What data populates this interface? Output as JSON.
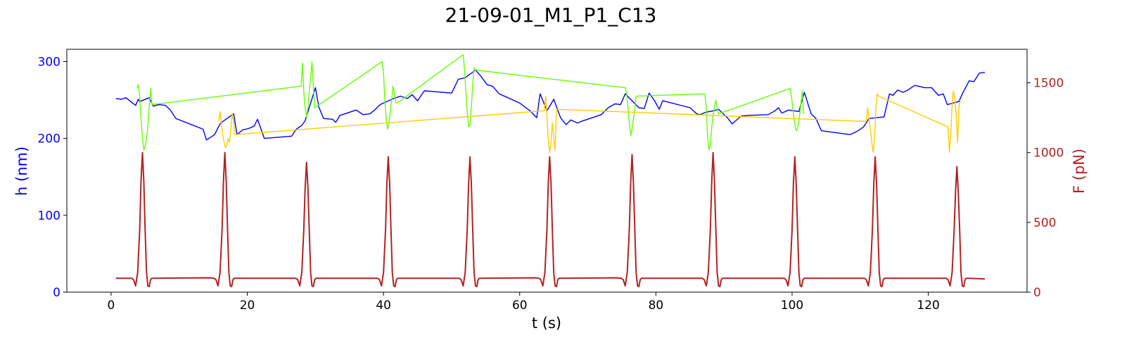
{
  "chart_data": {
    "type": "line",
    "title": "21-09-01_M1_P1_C13",
    "xlabel": "t (s)",
    "ylabel_left": "h (nm)",
    "ylabel_right": "F (pN)",
    "xlim": [
      -6.5,
      134.5
    ],
    "ylim_left": [
      0,
      316
    ],
    "ylim_right": [
      0,
      1740
    ],
    "xticks": [
      0,
      20,
      40,
      60,
      80,
      100,
      120
    ],
    "yticks_left": [
      0,
      100,
      200,
      300
    ],
    "yticks_right": [
      0,
      500,
      1000,
      1500
    ],
    "grid": false,
    "colors": {
      "height": "#0000ff",
      "compression_green": "#66ff00",
      "compression_yellow": "#ffcc00",
      "force": "#b22222",
      "left_axis": "#0000ff",
      "right_axis": "#b22222"
    },
    "series": [
      {
        "axis": "left",
        "color": "#0000ff",
        "x": [
          0.7,
          1.5,
          2.2,
          3.0,
          3.6,
          4.0,
          4.2,
          5.6,
          6.2,
          7.0,
          8.0,
          8.7,
          9.5,
          13.5,
          14.0,
          15.2,
          16.0,
          16.4,
          18.0,
          18.5,
          19.3,
          20.2,
          21.0,
          21.5,
          22.5,
          26.5,
          27.2,
          28.0,
          28.5,
          30.0,
          30.5,
          31.2,
          32.5,
          33.0,
          33.6,
          36.0,
          37.0,
          38.0,
          38.7,
          39.5,
          41.5,
          42.5,
          43.5,
          44.2,
          45.0,
          46.0,
          50.0,
          51.0,
          52.0,
          53.5,
          54.3,
          55.2,
          56.0,
          57.0,
          60.0,
          61.5,
          62.5,
          63.0,
          64.0,
          65.0,
          66.0,
          66.8,
          67.5,
          68.5,
          69.0,
          72.0,
          73.0,
          74.0,
          74.8,
          75.5,
          77.5,
          78.3,
          79.0,
          79.8,
          80.5,
          81.0,
          85.0,
          86.0,
          86.5,
          87.3,
          88.5,
          89.2,
          90.5,
          91.2,
          92.5,
          93.5,
          96.5,
          97.5,
          98.0,
          98.5,
          99.5,
          101.0,
          101.8,
          102.8,
          103.5,
          104.3,
          108.5,
          109.5,
          110.5,
          111.3,
          113.5,
          114.3,
          114.8,
          115.5,
          116.3,
          117.0,
          118.0,
          119.5,
          120.5,
          121.5,
          122.2,
          122.8,
          124.5,
          125.0,
          126.0,
          126.7,
          127.5,
          128.3
        ],
        "y": [
          252,
          251,
          253,
          247,
          243,
          251,
          248,
          253,
          242,
          244,
          243,
          237,
          226,
          212,
          198,
          205,
          219,
          222,
          232,
          205,
          211,
          213,
          216,
          225,
          200,
          203,
          212,
          217,
          223,
          266,
          241,
          226,
          225,
          221,
          230,
          237,
          231,
          232,
          237,
          244,
          252,
          255,
          252,
          257,
          249,
          262,
          259,
          277,
          279,
          289,
          281,
          270,
          268,
          258,
          246,
          236,
          227,
          258,
          236,
          251,
          227,
          218,
          224,
          220,
          222,
          231,
          240,
          245,
          244,
          258,
          240,
          239,
          259,
          249,
          238,
          249,
          240,
          232,
          231,
          234,
          236,
          238,
          227,
          219,
          229,
          230,
          231,
          236,
          240,
          233,
          237,
          235,
          260,
          232,
          226,
          210,
          205,
          209,
          215,
          226,
          228,
          258,
          256,
          263,
          260,
          263,
          269,
          266,
          266,
          256,
          258,
          244,
          248,
          258,
          275,
          274,
          285,
          286
        ]
      },
      {
        "axis": "left",
        "color": "#66ff00",
        "x": [
          3.8,
          4.0,
          4.2,
          4.4,
          4.6,
          4.8,
          5.0,
          5.2,
          5.4,
          5.6,
          5.8,
          6.0,
          27.9,
          28.1,
          28.3,
          28.5,
          28.7,
          28.9,
          29.1,
          29.3,
          29.5,
          29.7,
          29.9,
          39.8,
          40.0,
          40.2,
          40.4,
          40.6,
          40.8,
          41.0,
          41.2,
          41.4,
          41.6,
          41.8,
          42.0,
          51.7,
          51.9,
          52.1,
          52.3,
          52.5,
          52.7,
          52.9,
          53.1,
          53.3,
          53.5,
          75.5,
          75.7,
          75.9,
          76.1,
          76.3,
          76.5,
          76.7,
          76.9,
          77.1,
          87.2,
          87.4,
          87.6,
          87.8,
          88.0,
          88.2,
          88.4,
          88.6,
          88.8,
          89.0,
          89.2,
          99.7,
          99.9,
          100.1,
          100.3,
          100.5,
          100.7,
          100.9,
          101.1,
          101.3,
          101.5,
          101.7
        ],
        "y": [
          265,
          270,
          255,
          225,
          200,
          185,
          190,
          200,
          215,
          240,
          265,
          244,
          268,
          298,
          260,
          240,
          228,
          240,
          260,
          280,
          300,
          270,
          240,
          300,
          285,
          250,
          225,
          212,
          220,
          235,
          250,
          268,
          260,
          248,
          246,
          309,
          290,
          260,
          235,
          215,
          218,
          240,
          270,
          292,
          289,
          266,
          258,
          240,
          220,
          204,
          212,
          225,
          238,
          255,
          258,
          240,
          200,
          185,
          192,
          215,
          230,
          240,
          250,
          240,
          232,
          265,
          255,
          240,
          225,
          212,
          210,
          218,
          230,
          245,
          262,
          232
        ]
      },
      {
        "axis": "left",
        "color": "#ffcc00",
        "x": [
          15.8,
          16.0,
          16.2,
          16.4,
          16.6,
          16.8,
          17.0,
          17.2,
          17.4,
          17.6,
          17.8,
          18.0,
          18.2,
          63.6,
          63.8,
          64.0,
          64.2,
          64.4,
          64.6,
          64.8,
          65.0,
          65.2,
          65.4,
          110.9,
          111.1,
          111.3,
          111.5,
          111.7,
          111.9,
          112.1,
          112.3,
          112.5,
          112.7,
          122.9,
          123.1,
          123.3,
          123.5,
          123.7,
          123.9,
          124.1,
          124.3,
          124.5,
          124.7
        ],
        "y": [
          222,
          235,
          218,
          205,
          195,
          188,
          192,
          200,
          195,
          215,
          232,
          222,
          205,
          236,
          255,
          230,
          198,
          182,
          195,
          220,
          200,
          185,
          238,
          222,
          240,
          225,
          212,
          195,
          182,
          198,
          240,
          258,
          255,
          215,
          182,
          205,
          245,
          262,
          252,
          230,
          195,
          240,
          250
        ]
      },
      {
        "axis": "right",
        "color": "#b22222",
        "x": [
          0.7,
          3.0,
          3.3,
          3.6,
          3.9,
          4.2,
          4.4,
          4.6,
          4.8,
          5.0,
          5.2,
          5.4,
          5.6,
          5.8,
          6.0,
          6.3,
          14.5,
          15.1,
          15.4,
          15.7,
          16.0,
          16.3,
          16.5,
          16.7,
          16.9,
          17.1,
          17.3,
          17.5,
          17.7,
          17.9,
          18.1,
          18.4,
          26.5,
          27.1,
          27.4,
          27.7,
          28.0,
          28.3,
          28.5,
          28.7,
          28.9,
          29.1,
          29.3,
          29.5,
          29.7,
          29.9,
          30.1,
          30.4,
          38.5,
          39.1,
          39.4,
          39.7,
          40.0,
          40.3,
          40.5,
          40.7,
          40.9,
          41.1,
          41.3,
          41.5,
          41.7,
          41.9,
          42.1,
          42.4,
          50.5,
          51.1,
          51.4,
          51.7,
          52.0,
          52.3,
          52.5,
          52.7,
          52.9,
          53.1,
          53.3,
          53.5,
          53.7,
          53.9,
          54.1,
          54.4,
          62.2,
          62.8,
          63.1,
          63.4,
          63.7,
          64.0,
          64.2,
          64.4,
          64.6,
          64.8,
          65.0,
          65.2,
          65.4,
          65.6,
          65.8,
          66.1,
          74.3,
          74.9,
          75.2,
          75.5,
          75.8,
          76.1,
          76.3,
          76.5,
          76.7,
          76.9,
          77.1,
          77.3,
          77.5,
          77.7,
          77.9,
          78.2,
          86.2,
          86.8,
          87.1,
          87.4,
          87.7,
          88.0,
          88.2,
          88.4,
          88.6,
          88.8,
          89.0,
          89.2,
          89.4,
          89.6,
          89.8,
          90.1,
          98.2,
          98.8,
          99.1,
          99.4,
          99.7,
          100.0,
          100.2,
          100.4,
          100.6,
          100.8,
          101.0,
          101.2,
          101.4,
          101.6,
          101.8,
          102.1,
          110.0,
          110.6,
          110.9,
          111.2,
          111.5,
          111.8,
          112.0,
          112.2,
          112.4,
          112.6,
          112.8,
          113.0,
          113.2,
          113.4,
          113.6,
          113.9,
          122.0,
          122.6,
          122.9,
          123.2,
          123.5,
          123.8,
          124.0,
          124.2,
          124.4,
          124.6,
          124.8,
          125.0,
          125.2,
          125.4,
          125.6,
          125.9,
          128.3
        ],
        "y": [
          100,
          100,
          90,
          45,
          140,
          450,
          800,
          1000,
          800,
          450,
          140,
          45,
          40,
          90,
          100,
          100,
          103,
          100,
          90,
          45,
          140,
          450,
          800,
          1000,
          800,
          450,
          140,
          45,
          40,
          90,
          100,
          100,
          100,
          100,
          90,
          45,
          140,
          450,
          750,
          930,
          750,
          450,
          140,
          45,
          40,
          90,
          100,
          100,
          100,
          100,
          90,
          45,
          140,
          450,
          780,
          970,
          780,
          450,
          140,
          45,
          40,
          90,
          100,
          100,
          100,
          100,
          90,
          45,
          140,
          450,
          780,
          970,
          780,
          450,
          140,
          45,
          40,
          90,
          100,
          100,
          103,
          100,
          90,
          45,
          140,
          450,
          780,
          970,
          780,
          450,
          140,
          45,
          40,
          90,
          100,
          100,
          103,
          100,
          90,
          45,
          140,
          450,
          790,
          985,
          790,
          450,
          140,
          45,
          40,
          90,
          100,
          100,
          100,
          100,
          90,
          45,
          140,
          450,
          800,
          1000,
          800,
          450,
          140,
          45,
          40,
          90,
          100,
          100,
          100,
          100,
          90,
          45,
          140,
          450,
          780,
          970,
          780,
          450,
          140,
          45,
          40,
          90,
          100,
          100,
          100,
          100,
          90,
          45,
          140,
          450,
          780,
          970,
          780,
          450,
          140,
          45,
          40,
          90,
          100,
          100,
          100,
          100,
          90,
          45,
          140,
          450,
          720,
          900,
          720,
          450,
          140,
          45,
          40,
          90,
          100,
          100,
          95
        ]
      }
    ]
  }
}
